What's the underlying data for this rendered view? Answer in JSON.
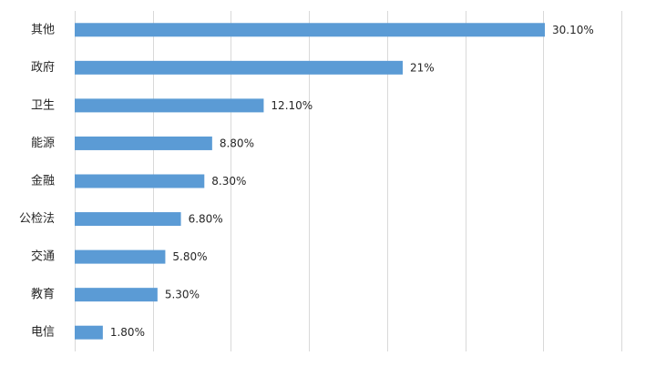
{
  "chart_data": {
    "type": "bar",
    "orientation": "horizontal",
    "categories": [
      "其他",
      "政府",
      "卫生",
      "能源",
      "金融",
      "公检法",
      "交通",
      "教育",
      "电信"
    ],
    "values": [
      30.1,
      21,
      12.1,
      8.8,
      8.3,
      6.8,
      5.8,
      5.3,
      1.8
    ],
    "value_labels": [
      "30.10%",
      "21%",
      "12.10%",
      "8.80%",
      "8.30%",
      "6.80%",
      "5.80%",
      "5.30%",
      "1.80%"
    ],
    "xlim": [
      0,
      35
    ],
    "grid": "vertical",
    "legend": "none",
    "bar_color": "#5b9bd5"
  }
}
